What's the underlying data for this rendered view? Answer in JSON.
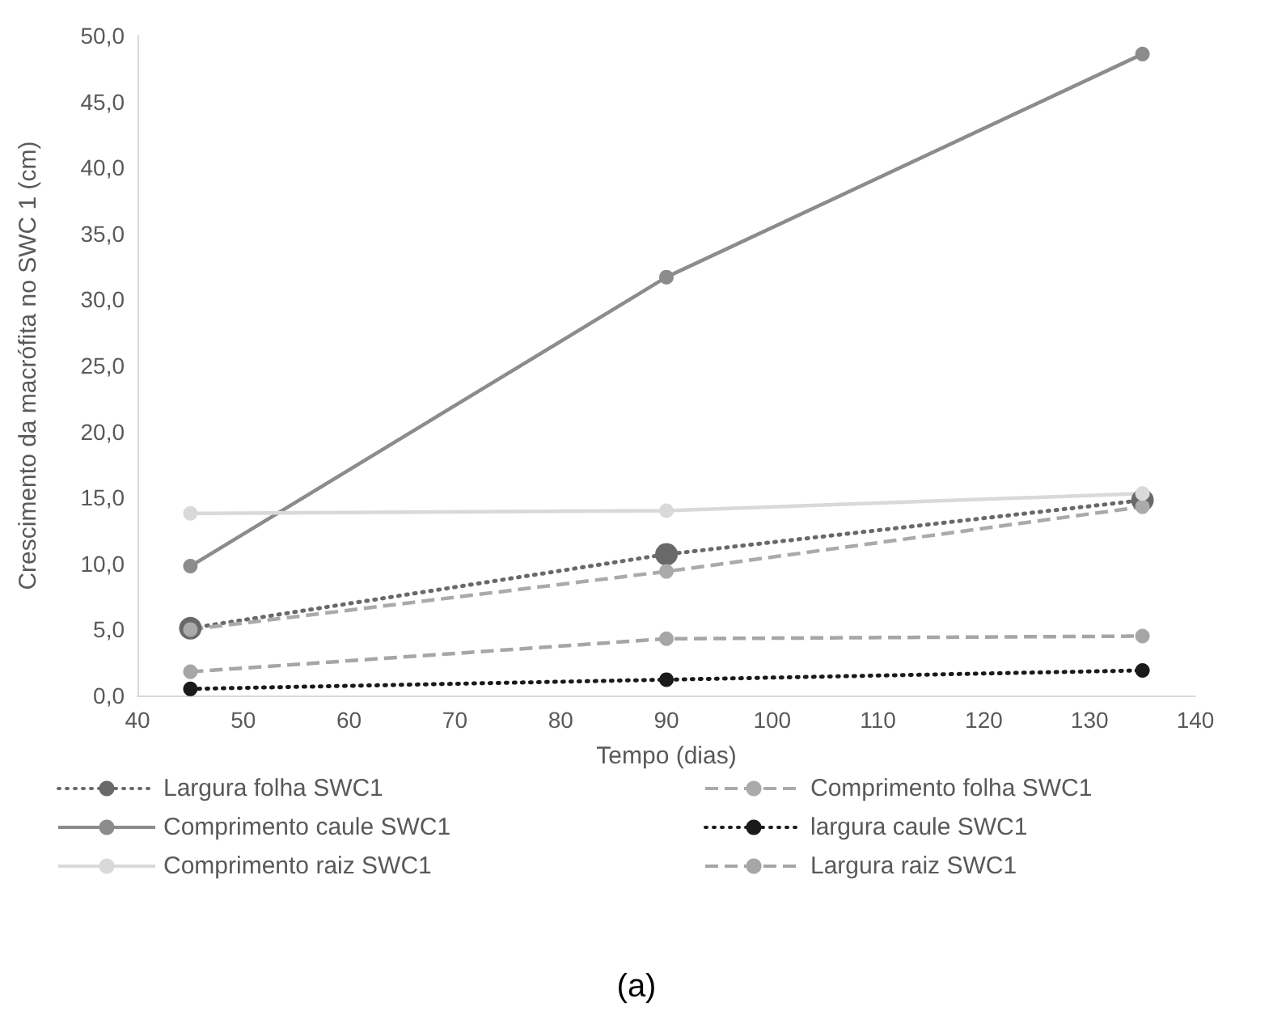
{
  "chart_data": {
    "type": "line",
    "xlabel": "Tempo (dias)",
    "ylabel": "Crescimento da macrófita no SWC 1 (cm)",
    "x": [
      45,
      90,
      135
    ],
    "series": [
      {
        "name": "Largura folha SWC1",
        "color": "#696969",
        "line_style": "dotted",
        "values": [
          5.1,
          10.7,
          14.8
        ]
      },
      {
        "name": "Comprimento folha SWC1",
        "color": "#aaaaaa",
        "line_style": "dashed",
        "values": [
          5.0,
          9.4,
          14.3
        ]
      },
      {
        "name": "Comprimento caule SWC1",
        "color": "#8c8c8c",
        "line_style": "solid",
        "values": [
          9.8,
          31.7,
          48.6
        ]
      },
      {
        "name": "largura caule SWC1",
        "color": "#1a1a1a",
        "line_style": "dotted",
        "values": [
          0.5,
          1.2,
          1.9
        ]
      },
      {
        "name": "Comprimento raiz SWC1",
        "color": "#d9d9d9",
        "line_style": "solid",
        "values": [
          13.8,
          14.0,
          15.3
        ]
      },
      {
        "name": "Largura raiz SWC1",
        "color": "#a6a6a6",
        "line_style": "dashed",
        "values": [
          1.8,
          4.3,
          4.5
        ]
      }
    ],
    "xlim": [
      40,
      140
    ],
    "xticks": [
      40,
      50,
      60,
      70,
      80,
      90,
      100,
      110,
      120,
      130,
      140
    ],
    "ylim": [
      0,
      50
    ],
    "yticks": [
      {
        "value": 0,
        "label": "0,0"
      },
      {
        "value": 5,
        "label": "5,0"
      },
      {
        "value": 10,
        "label": "10,0"
      },
      {
        "value": 15,
        "label": "15,0"
      },
      {
        "value": 20,
        "label": "20,0"
      },
      {
        "value": 25,
        "label": "25,0"
      },
      {
        "value": 30,
        "label": "30,0"
      },
      {
        "value": 35,
        "label": "35,0"
      },
      {
        "value": 40,
        "label": "40,0"
      },
      {
        "value": 45,
        "label": "45,0"
      },
      {
        "value": 50,
        "label": "50,0"
      }
    ],
    "grid": false,
    "legend": "bottom",
    "marker": "circle",
    "annotations": [
      "(a)"
    ]
  }
}
